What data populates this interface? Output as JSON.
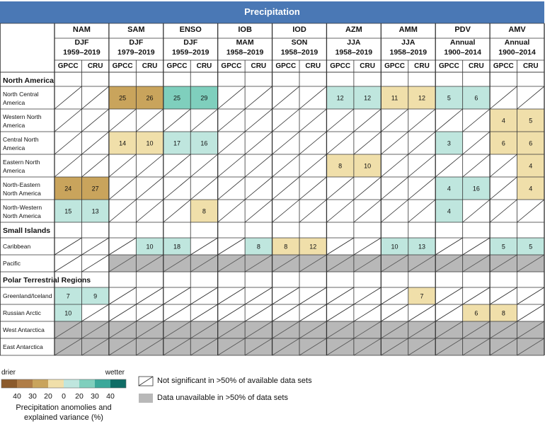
{
  "title": "Precipitation",
  "columns": [
    {
      "index": "NAM",
      "season": "DJF",
      "period": "1959–2019"
    },
    {
      "index": "SAM",
      "season": "DJF",
      "period": "1979–2019"
    },
    {
      "index": "ENSO",
      "season": "DJF",
      "period": "1959–2019"
    },
    {
      "index": "IOB",
      "season": "MAM",
      "period": "1958–2019"
    },
    {
      "index": "IOD",
      "season": "SON",
      "period": "1958–2019"
    },
    {
      "index": "AZM",
      "season": "JJA",
      "period": "1958–2019"
    },
    {
      "index": "AMM",
      "season": "JJA",
      "period": "1958–2019"
    },
    {
      "index": "PDV",
      "season": "Annual",
      "period": "1900–2014"
    },
    {
      "index": "AMV",
      "season": "Annual",
      "period": "1900–2014"
    }
  ],
  "datasets": [
    "GPCC",
    "CRU"
  ],
  "colors": {
    "header_bar": "#4a78b5",
    "dry_strong": "#8b5a2b",
    "dry_30_40": "#b07d47",
    "dry_20_30": "#c9a45c",
    "dry_0_20": "#f0dfaa",
    "wet_0_20": "#bfe6de",
    "wet_20_30": "#7fcfbd",
    "wet_30_40": "#3aa89a",
    "wet_strong": "#0f6d66",
    "unavailable": "#b8b8b8"
  },
  "chart_data": {
    "type": "heatmap",
    "title": "Precipitation",
    "value_unit": "%",
    "cell_code_legend": {
      "x": "not significant (diagonal hatch)",
      "u": "data unavailable (grey)",
      "numbers": "explained variance %, sign gives drier (-) / wetter (+)"
    },
    "groups": [
      {
        "name": "North America",
        "rows": [
          {
            "label": "North Central America",
            "cells": [
              "x",
              "x",
              -25,
              -26,
              25,
              29,
              "x",
              "x",
              "x",
              "x",
              12,
              12,
              -11,
              -12,
              5,
              6,
              "x",
              "x"
            ]
          },
          {
            "label": "Western North America",
            "cells": [
              "x",
              "x",
              "x",
              "x",
              "x",
              "x",
              "x",
              "x",
              "x",
              "x",
              "x",
              "x",
              "x",
              "x",
              "x",
              "x",
              -4,
              -5
            ]
          },
          {
            "label": "Central North America",
            "cells": [
              "x",
              "x",
              -14,
              -10,
              17,
              16,
              "x",
              "x",
              "x",
              "x",
              "x",
              "x",
              "x",
              "x",
              3,
              "x",
              -6,
              -6
            ]
          },
          {
            "label": "Eastern North America",
            "cells": [
              "x",
              "x",
              "x",
              "x",
              "x",
              "x",
              "x",
              "x",
              "x",
              "x",
              -8,
              -10,
              "x",
              "x",
              "x",
              "x",
              "x",
              -4
            ]
          },
          {
            "label": "North-Eastern North America",
            "cells": [
              -24,
              -27,
              "x",
              "x",
              "x",
              "x",
              "x",
              "x",
              "x",
              "x",
              "x",
              "x",
              "x",
              "x",
              4,
              16,
              "x",
              -4
            ]
          },
          {
            "label": "North-Western North America",
            "cells": [
              15,
              13,
              "x",
              "x",
              "x",
              -8,
              "x",
              "x",
              "x",
              "x",
              "x",
              "x",
              "x",
              "x",
              4,
              "x",
              "x",
              "x"
            ]
          }
        ]
      },
      {
        "name": "Small Islands",
        "rows": [
          {
            "label": "Caribbean",
            "cells": [
              "x",
              "x",
              "x",
              10,
              18,
              "x",
              "x",
              8,
              -8,
              -12,
              "x",
              "x",
              10,
              13,
              "x",
              "x",
              5,
              5
            ]
          },
          {
            "label": "Pacific",
            "cells": [
              "x",
              "x",
              "u",
              "u",
              "u",
              "u",
              "u",
              "u",
              "u",
              "u",
              "u",
              "u",
              "u",
              "u",
              "u",
              "u",
              "u",
              "u"
            ]
          }
        ]
      },
      {
        "name": "Polar Terrestrial Regions",
        "rows": [
          {
            "label": "Greenland/Iceland",
            "cells": [
              7,
              9,
              "x",
              "x",
              "x",
              "x",
              "x",
              "x",
              "x",
              "x",
              "x",
              "x",
              "x",
              -7,
              "x",
              "x",
              "x",
              "x"
            ]
          },
          {
            "label": "Russian Arctic",
            "cells": [
              10,
              "x",
              "x",
              "x",
              "x",
              "x",
              "x",
              "x",
              "x",
              "x",
              "x",
              "x",
              "x",
              "x",
              "x",
              -6,
              -8,
              "x"
            ]
          },
          {
            "label": "West Antarctica",
            "cells": [
              "u",
              "u",
              "u",
              "u",
              "u",
              "u",
              "u",
              "u",
              "u",
              "u",
              "u",
              "u",
              "u",
              "u",
              "u",
              "u",
              "u",
              "u"
            ]
          },
          {
            "label": "East Antarctica",
            "cells": [
              "u",
              "u",
              "u",
              "u",
              "u",
              "u",
              "u",
              "u",
              "u",
              "u",
              "u",
              "u",
              "u",
              "u",
              "u",
              "u",
              "u",
              "u"
            ]
          }
        ]
      }
    ]
  },
  "legend": {
    "drier_label": "drier",
    "wetter_label": "wetter",
    "tick_labels": [
      "40",
      "30",
      "20",
      "0",
      "20",
      "30",
      "40"
    ],
    "caption_line1": "Precipitation anomolies and",
    "caption_line2": "explained variance (%)",
    "not_significant": "Not significant in >50% of available data sets",
    "unavailable": "Data unavailable in >50% of data sets"
  }
}
